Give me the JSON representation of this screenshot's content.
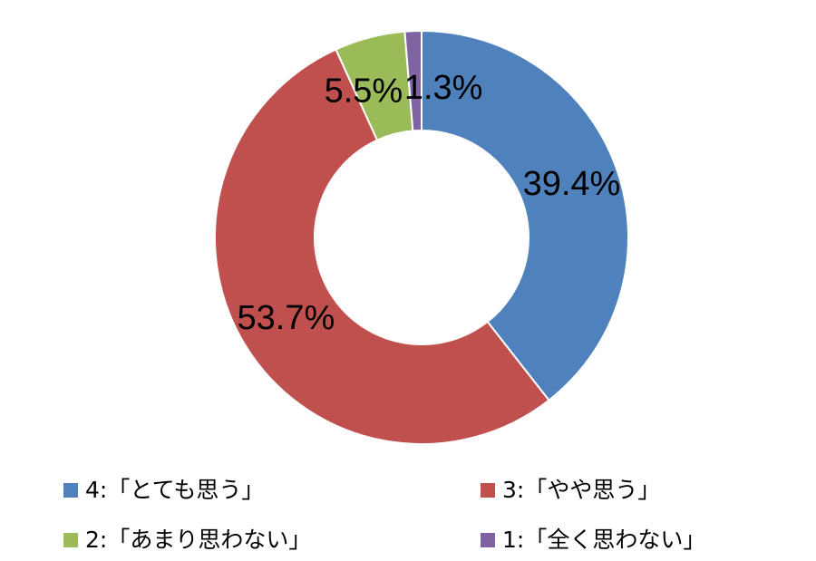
{
  "chart_data": {
    "type": "donut",
    "categories": [
      "4:「とても思う」",
      "3:「やや思う」",
      "2:「あまり思わない」",
      "1:「全く思わない」"
    ],
    "values": [
      39.4,
      53.7,
      5.5,
      1.3
    ],
    "value_labels": [
      "39.4%",
      "53.7%",
      "5.5%",
      "1.3%"
    ],
    "colors": [
      "#4f81bd",
      "#c0504d",
      "#9bbb59",
      "#8064a2"
    ]
  }
}
